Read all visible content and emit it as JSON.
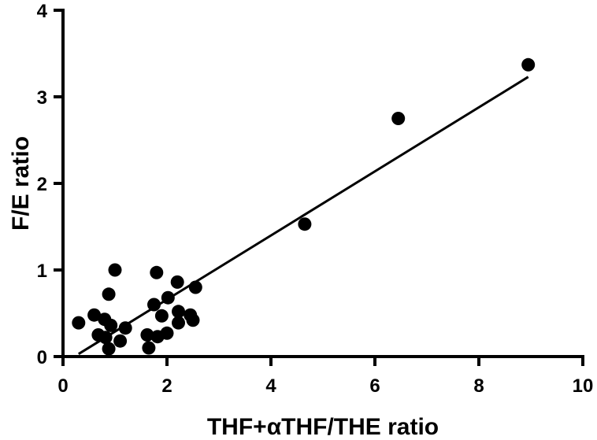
{
  "chart_data": {
    "type": "scatter",
    "title": "",
    "xlabel": "THF+αTHF/THE ratio",
    "ylabel": "F/E ratio",
    "xlim": [
      0,
      10
    ],
    "ylim": [
      0,
      4
    ],
    "x_ticks": [
      "0",
      "2",
      "4",
      "6",
      "8",
      "10"
    ],
    "y_ticks": [
      "0",
      "1",
      "2",
      "3",
      "4"
    ],
    "grid": false,
    "legend": "none",
    "marker_color": "#000000",
    "points": [
      {
        "x": 0.3,
        "y": 0.39
      },
      {
        "x": 0.6,
        "y": 0.48
      },
      {
        "x": 0.68,
        "y": 0.25
      },
      {
        "x": 0.8,
        "y": 0.43
      },
      {
        "x": 0.82,
        "y": 0.22
      },
      {
        "x": 0.88,
        "y": 0.72
      },
      {
        "x": 0.88,
        "y": 0.09
      },
      {
        "x": 0.92,
        "y": 0.36
      },
      {
        "x": 1.0,
        "y": 1.0
      },
      {
        "x": 1.1,
        "y": 0.18
      },
      {
        "x": 1.2,
        "y": 0.33
      },
      {
        "x": 1.62,
        "y": 0.25
      },
      {
        "x": 1.65,
        "y": 0.1
      },
      {
        "x": 1.75,
        "y": 0.6
      },
      {
        "x": 1.8,
        "y": 0.97
      },
      {
        "x": 1.82,
        "y": 0.23
      },
      {
        "x": 1.9,
        "y": 0.47
      },
      {
        "x": 2.0,
        "y": 0.27
      },
      {
        "x": 2.02,
        "y": 0.68
      },
      {
        "x": 2.2,
        "y": 0.86
      },
      {
        "x": 2.22,
        "y": 0.52
      },
      {
        "x": 2.22,
        "y": 0.39
      },
      {
        "x": 2.45,
        "y": 0.48
      },
      {
        "x": 2.5,
        "y": 0.42
      },
      {
        "x": 2.55,
        "y": 0.8
      },
      {
        "x": 4.65,
        "y": 1.53
      },
      {
        "x": 6.45,
        "y": 2.75
      },
      {
        "x": 8.95,
        "y": 3.37
      }
    ],
    "fit_line": {
      "x1": 0.3,
      "y1": 0.03,
      "x2": 8.95,
      "y2": 3.23
    }
  }
}
